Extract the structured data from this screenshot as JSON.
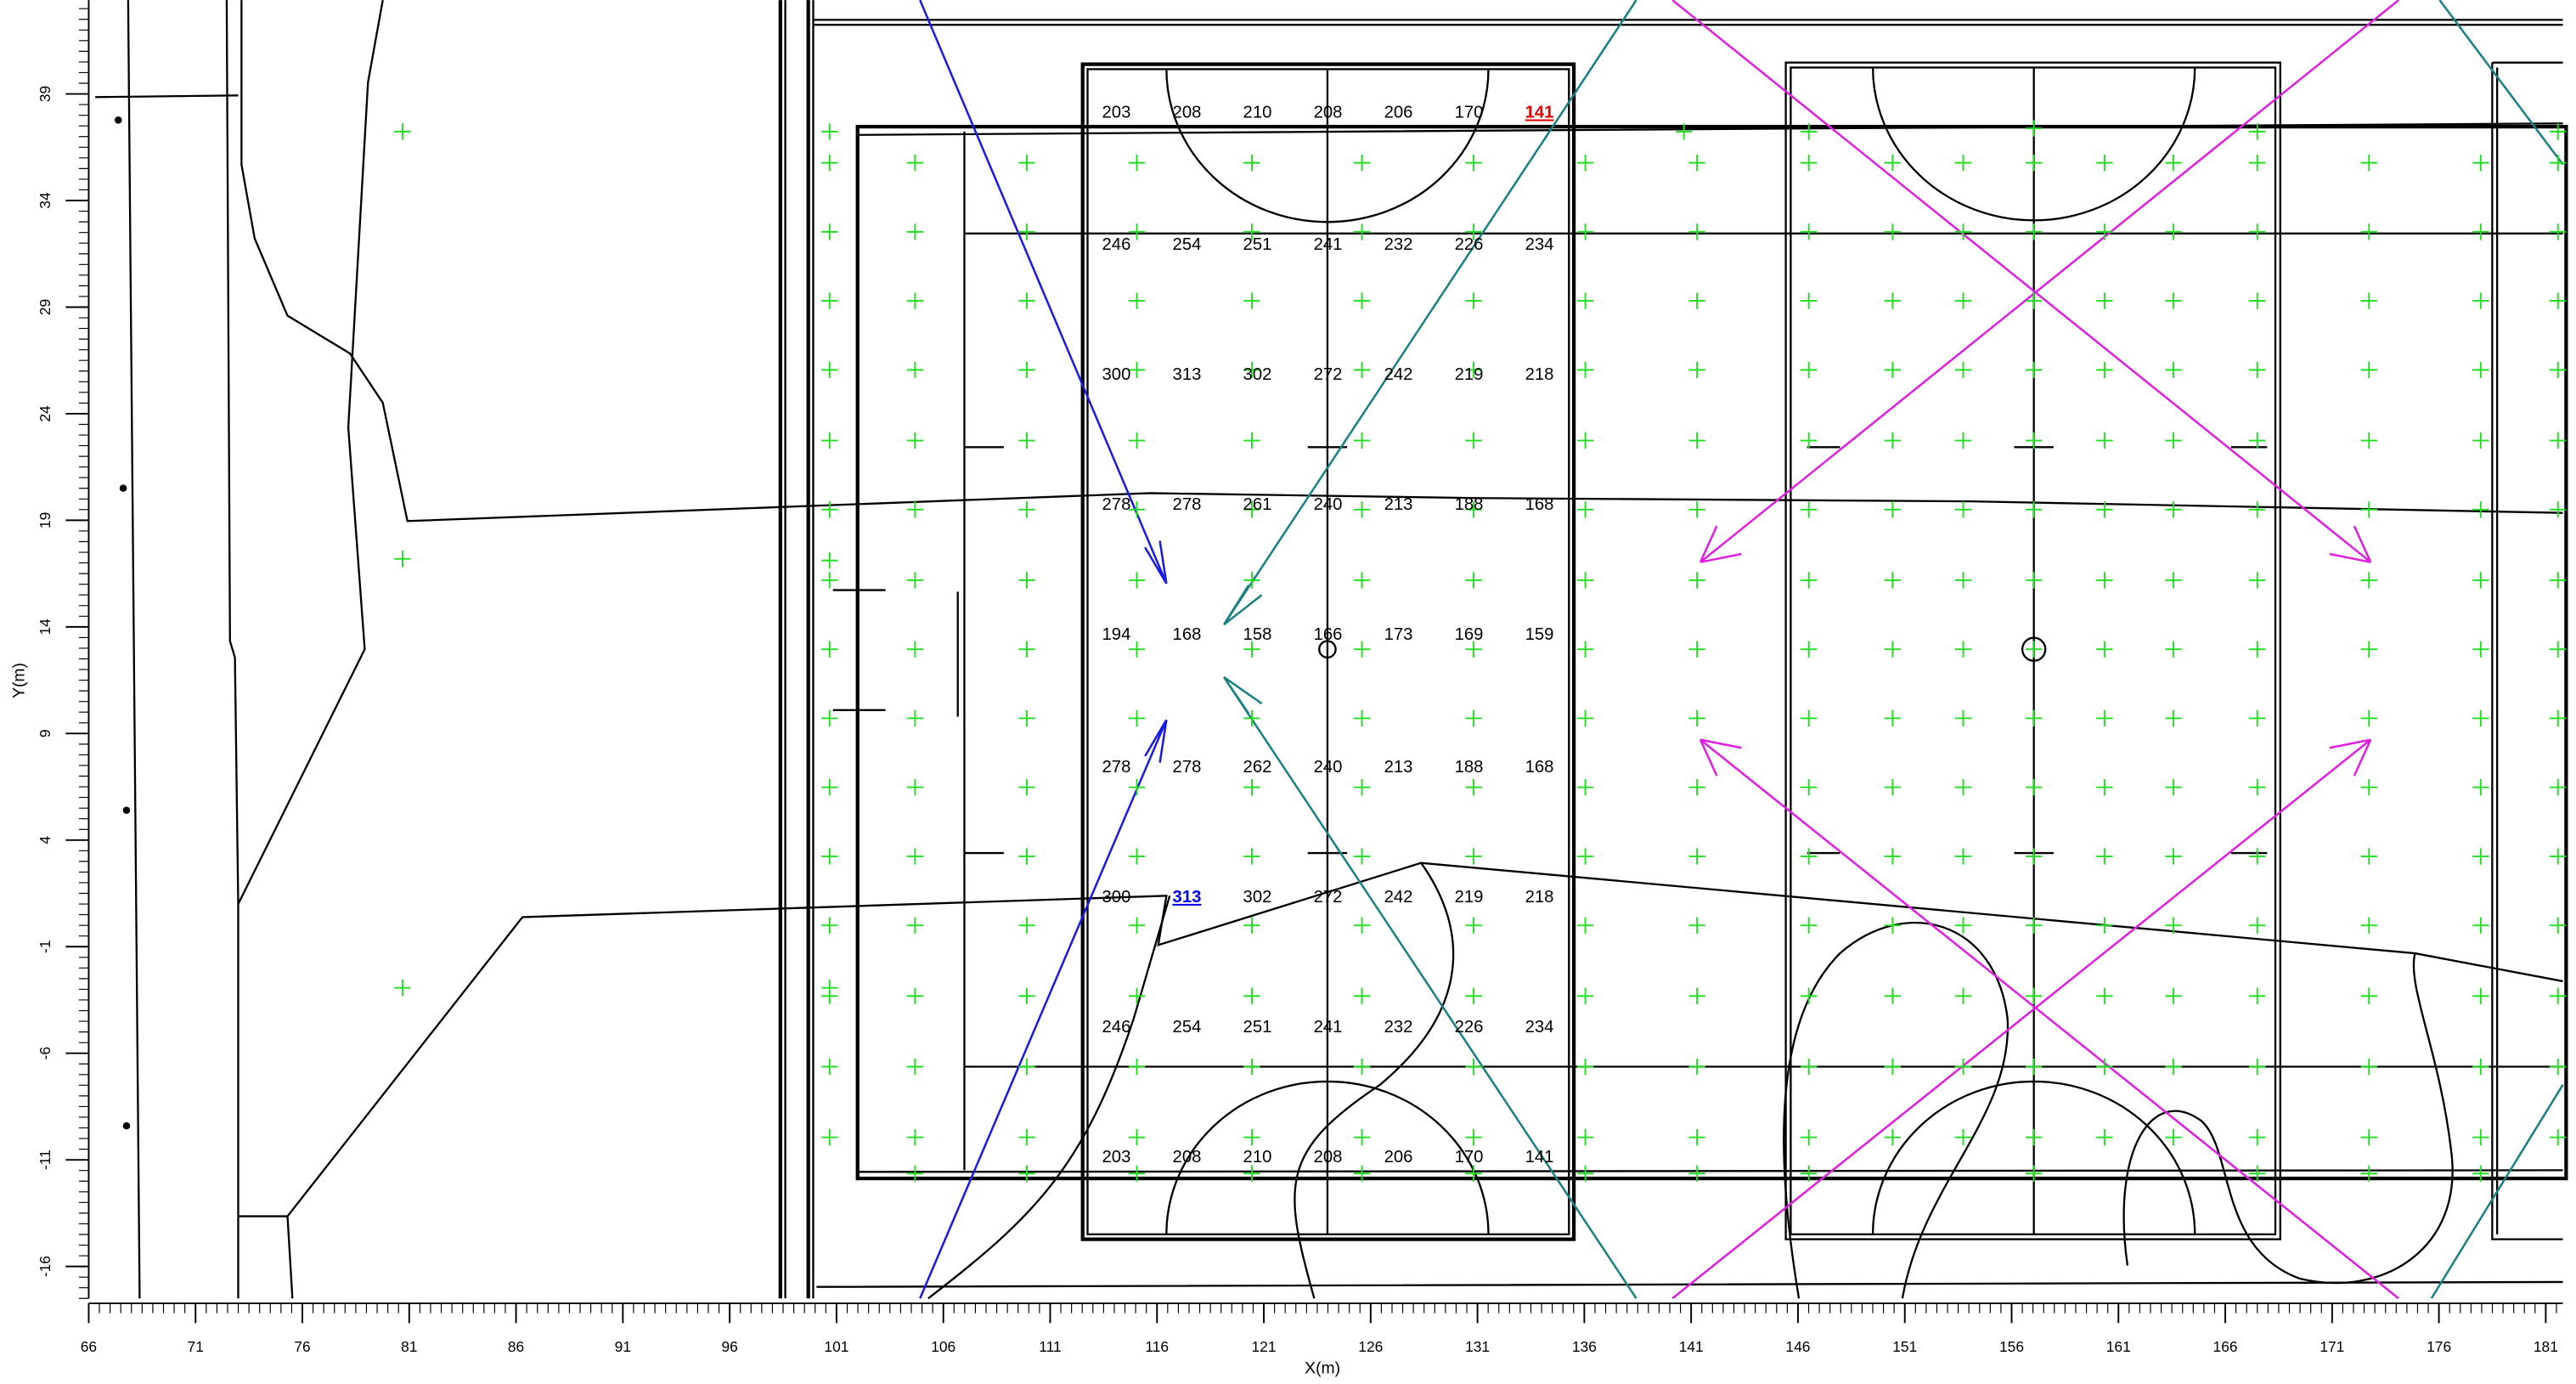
{
  "chart_data": {
    "type": "illuminance-grid",
    "x_label": "X(m)",
    "y_label": "Y(m)",
    "xlim": [
      66,
      181.8
    ],
    "ylim": [
      -17.5,
      43.4
    ],
    "xticks": [
      66,
      71,
      76,
      81,
      86,
      91,
      96,
      101,
      106,
      111,
      116,
      121,
      126,
      131,
      136,
      141,
      146,
      151,
      156,
      161,
      166,
      171,
      176,
      181
    ],
    "yticks": [
      -16,
      -11,
      -6,
      -1,
      4,
      9,
      14,
      19,
      24,
      29,
      34,
      39
    ],
    "minor_tick_step": 0.5,
    "x": [
      114.1,
      117.4,
      120.7,
      124,
      127.3,
      130.6,
      133.9
    ],
    "rows": [
      {
        "y": 38.1,
        "values": [
          203,
          208,
          210,
          208,
          206,
          170,
          141
        ]
      },
      {
        "y": 31.9,
        "values": [
          246,
          254,
          251,
          241,
          232,
          226,
          234
        ]
      },
      {
        "y": 25.8,
        "values": [
          300,
          313,
          302,
          272,
          242,
          219,
          218
        ]
      },
      {
        "y": 19.7,
        "values": [
          278,
          278,
          261,
          240,
          213,
          188,
          168
        ]
      },
      {
        "y": 13.6,
        "values": [
          194,
          168,
          158,
          166,
          173,
          169,
          159
        ]
      },
      {
        "y": 7.4,
        "values": [
          278,
          278,
          262,
          240,
          213,
          188,
          168
        ]
      },
      {
        "y": 1.3,
        "values": [
          300,
          313,
          302,
          272,
          242,
          219,
          218
        ]
      },
      {
        "y": -4.8,
        "values": [
          246,
          254,
          251,
          241,
          232,
          226,
          234
        ]
      },
      {
        "y": -10.9,
        "values": [
          203,
          208,
          210,
          208,
          206,
          170,
          141
        ]
      }
    ],
    "color": "#000000",
    "highlights": [
      {
        "row": 0,
        "col": 6,
        "color": "#e00000"
      },
      {
        "row": 6,
        "col": 1,
        "color": "#0000ee"
      }
    ]
  }
}
